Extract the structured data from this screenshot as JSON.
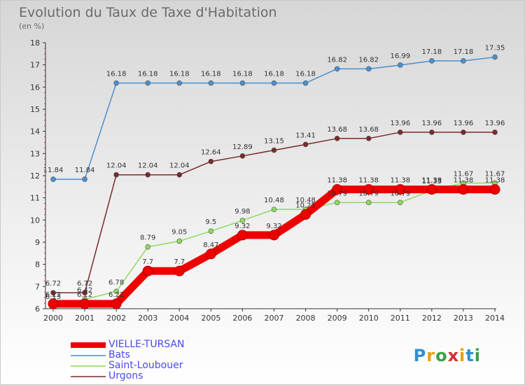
{
  "header": {
    "title": "Evolution du Taux de Taxe d'Habitation",
    "subtitle": "(en %)"
  },
  "legend": {
    "items": [
      "VIELLE-TURSAN",
      "Bats",
      "Saint-Loubouer",
      "Urgons"
    ]
  },
  "logo": {
    "text": "Proxiti"
  },
  "chart_data": {
    "type": "line",
    "title": "Evolution du Taux de Taxe d'Habitation",
    "subtitle": "(en %)",
    "xlabel": "",
    "ylabel": "",
    "ylim": [
      6,
      18
    ],
    "yticks": [
      6,
      7,
      8,
      9,
      10,
      11,
      12,
      13,
      14,
      15,
      16,
      17,
      18
    ],
    "grid": false,
    "legend_position": "bottom-left",
    "x": [
      "2000",
      "2001",
      "2002",
      "2003",
      "2004",
      "2005",
      "2006",
      "2007",
      "2008",
      "2009",
      "2010",
      "2011",
      "2012",
      "2013",
      "2014"
    ],
    "series": [
      {
        "name": "VIELLE-TURSAN",
        "color": "#ee0000",
        "values": [
          6.22,
          6.22,
          6.22,
          7.7,
          7.7,
          8.47,
          9.32,
          9.32,
          10.25,
          11.38,
          11.38,
          11.38,
          11.38,
          11.38,
          11.38
        ],
        "labels": [
          "6.22",
          "6.22",
          "6.22",
          "7.7",
          "7.7",
          "8.47",
          "9.32",
          "9.32",
          "10.25",
          "11.38",
          "11.38",
          "11.38",
          "11.38",
          "11.38",
          "11.38"
        ]
      },
      {
        "name": "Bats",
        "color": "#4a8fcf",
        "values": [
          11.84,
          11.84,
          16.18,
          16.18,
          16.18,
          16.18,
          16.18,
          16.18,
          16.18,
          16.82,
          16.82,
          16.99,
          17.18,
          17.18,
          17.35
        ],
        "labels": [
          "11.84",
          "11.84",
          "16.18",
          "16.18",
          "16.18",
          "16.18",
          "16.18",
          "16.18",
          "16.18",
          "16.82",
          "16.82",
          "16.99",
          "17.18",
          "17.18",
          "17.35"
        ]
      },
      {
        "name": "Saint-Loubouer",
        "color": "#8fd860",
        "values": [
          6.13,
          6.42,
          6.78,
          8.79,
          9.05,
          9.5,
          9.98,
          10.48,
          10.48,
          10.79,
          10.79,
          10.79,
          11.33,
          11.67,
          11.67
        ],
        "labels": [
          "6.13",
          "6.42",
          "6.78",
          "8.79",
          "9.05",
          "9.5",
          "9.98",
          "10.48",
          "10.48",
          "10.79",
          "10.79",
          "10.79",
          "11.33",
          "11.67",
          "11.67"
        ]
      },
      {
        "name": "Urgons",
        "color": "#7a2a2a",
        "values": [
          6.72,
          6.72,
          12.04,
          12.04,
          12.04,
          12.64,
          12.89,
          13.15,
          13.41,
          13.68,
          13.68,
          13.96,
          13.96,
          13.96,
          13.96
        ],
        "labels": [
          "6.72",
          "6.72",
          "12.04",
          "12.04",
          "12.04",
          "12.64",
          "12.89",
          "13.15",
          "13.41",
          "13.68",
          "13.68",
          "13.96",
          "13.96",
          "13.96",
          "13.96"
        ]
      }
    ]
  }
}
